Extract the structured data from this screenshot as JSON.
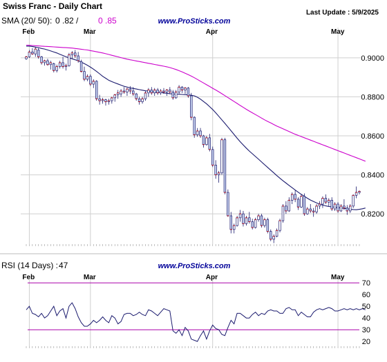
{
  "header": {
    "title": "Swiss Franc - Daily Chart",
    "last_update": "Last Update : 5/9/2025",
    "sma_label": "SMA (20/ 50):",
    "sma20_value": "0 .82 /",
    "sma50_value": "0 .85"
  },
  "watermark": "www.ProSticks.com",
  "rsi_panel": {
    "label": "RSI (14 Days) :",
    "value": "47"
  },
  "colors": {
    "sma20": "#1a1a6e",
    "sma50": "#cc00cc",
    "candle": "#1a1a6e",
    "candle_fill": "#c8d4f0",
    "rsi_line": "#1a1a6e",
    "rsi_levels": "#aa00aa",
    "watermark": "#000099",
    "grid": "#cfcfcf"
  },
  "chart_data": [
    {
      "type": "candlestick",
      "title": "Swiss Franc - Daily Chart",
      "months": [
        "Feb",
        "Mar",
        "Apr",
        "May"
      ],
      "month_start_index": [
        1,
        21,
        61,
        102
      ],
      "yticks": [
        "0.9000",
        "0.8800",
        "0.8600",
        "0.8400",
        "0.8200"
      ],
      "ylim": [
        0.8045,
        0.9155
      ],
      "grid": true,
      "candles": [
        [
          0.8995,
          0.901,
          0.899,
          0.9005
        ],
        [
          0.9005,
          0.904,
          0.9,
          0.903
        ],
        [
          0.903,
          0.905,
          0.9015,
          0.902
        ],
        [
          0.902,
          0.9055,
          0.9005,
          0.9045
        ],
        [
          0.904,
          0.905,
          0.8995,
          0.9005
        ],
        [
          0.9005,
          0.901,
          0.8965,
          0.8975
        ],
        [
          0.8975,
          0.899,
          0.896,
          0.8985
        ],
        [
          0.8985,
          0.8995,
          0.896,
          0.8965
        ],
        [
          0.8965,
          0.8985,
          0.894,
          0.8975
        ],
        [
          0.897,
          0.8975,
          0.8925,
          0.8935
        ],
        [
          0.8935,
          0.8965,
          0.8925,
          0.8955
        ],
        [
          0.8955,
          0.8985,
          0.8945,
          0.8975
        ],
        [
          0.8975,
          0.9005,
          0.8945,
          0.8955
        ],
        [
          0.8955,
          0.897,
          0.8935,
          0.896
        ],
        [
          0.896,
          0.9025,
          0.8955,
          0.9015
        ],
        [
          0.9015,
          0.9035,
          0.8995,
          0.9025
        ],
        [
          0.9025,
          0.904,
          0.9,
          0.901
        ],
        [
          0.901,
          0.903,
          0.8975,
          0.8985
        ],
        [
          0.898,
          0.899,
          0.8925,
          0.893
        ],
        [
          0.893,
          0.8955,
          0.888,
          0.889
        ],
        [
          0.889,
          0.8915,
          0.888,
          0.8905
        ],
        [
          0.8905,
          0.8915,
          0.8855,
          0.8865
        ],
        [
          0.8865,
          0.889,
          0.8845,
          0.888
        ],
        [
          0.888,
          0.8885,
          0.878,
          0.879
        ],
        [
          0.879,
          0.881,
          0.876,
          0.878
        ],
        [
          0.878,
          0.8795,
          0.8765,
          0.8785
        ],
        [
          0.8785,
          0.879,
          0.8755,
          0.8775
        ],
        [
          0.8775,
          0.879,
          0.876,
          0.878
        ],
        [
          0.878,
          0.88,
          0.8765,
          0.8795
        ],
        [
          0.8795,
          0.8815,
          0.8775,
          0.881
        ],
        [
          0.881,
          0.8835,
          0.879,
          0.882
        ],
        [
          0.8815,
          0.884,
          0.88,
          0.883
        ],
        [
          0.883,
          0.885,
          0.8815,
          0.8825
        ],
        [
          0.8825,
          0.8845,
          0.8805,
          0.884
        ],
        [
          0.884,
          0.8855,
          0.8815,
          0.883
        ],
        [
          0.883,
          0.885,
          0.8805,
          0.8815
        ],
        [
          0.8815,
          0.882,
          0.878,
          0.879
        ],
        [
          0.879,
          0.88,
          0.876,
          0.8775
        ],
        [
          0.8775,
          0.88,
          0.8765,
          0.879
        ],
        [
          0.879,
          0.883,
          0.878,
          0.882
        ],
        [
          0.882,
          0.8845,
          0.88,
          0.8835
        ],
        [
          0.8835,
          0.885,
          0.881,
          0.882
        ],
        [
          0.882,
          0.8845,
          0.8805,
          0.8835
        ],
        [
          0.8835,
          0.8845,
          0.881,
          0.882
        ],
        [
          0.882,
          0.884,
          0.881,
          0.883
        ],
        [
          0.883,
          0.8845,
          0.8815,
          0.8825
        ],
        [
          0.8825,
          0.884,
          0.8805,
          0.8835
        ],
        [
          0.8835,
          0.885,
          0.8815,
          0.8825
        ],
        [
          0.8825,
          0.8835,
          0.8785,
          0.8795
        ],
        [
          0.8795,
          0.8835,
          0.879,
          0.8825
        ],
        [
          0.8825,
          0.886,
          0.8815,
          0.885
        ],
        [
          0.885,
          0.8855,
          0.882,
          0.8835
        ],
        [
          0.8835,
          0.885,
          0.8815,
          0.8845
        ],
        [
          0.8845,
          0.885,
          0.8795,
          0.8805
        ],
        [
          0.8805,
          0.882,
          0.868,
          0.8695
        ],
        [
          0.8695,
          0.87,
          0.859,
          0.8605
        ],
        [
          0.8605,
          0.864,
          0.8595,
          0.8625
        ],
        [
          0.8625,
          0.864,
          0.859,
          0.86
        ],
        [
          0.86,
          0.8605,
          0.854,
          0.8555
        ],
        [
          0.8555,
          0.86,
          0.855,
          0.859
        ],
        [
          0.859,
          0.861,
          0.852,
          0.853
        ],
        [
          0.853,
          0.8545,
          0.844,
          0.845
        ],
        [
          0.845,
          0.8475,
          0.838,
          0.84
        ],
        [
          0.84,
          0.842,
          0.836,
          0.841
        ],
        [
          0.841,
          0.859,
          0.84,
          0.858
        ],
        [
          0.858,
          0.859,
          0.83,
          0.831
        ],
        [
          0.831,
          0.8325,
          0.8185,
          0.819
        ],
        [
          0.819,
          0.821,
          0.81,
          0.812
        ],
        [
          0.812,
          0.815,
          0.81,
          0.814
        ],
        [
          0.814,
          0.819,
          0.8135,
          0.818
        ],
        [
          0.818,
          0.822,
          0.816,
          0.82
        ],
        [
          0.82,
          0.8215,
          0.8135,
          0.815
        ],
        [
          0.815,
          0.819,
          0.814,
          0.818
        ],
        [
          0.818,
          0.821,
          0.815,
          0.816
        ],
        [
          0.816,
          0.8175,
          0.812,
          0.813
        ],
        [
          0.813,
          0.818,
          0.8125,
          0.817
        ],
        [
          0.817,
          0.82,
          0.816,
          0.819
        ],
        [
          0.819,
          0.82,
          0.813,
          0.814
        ],
        [
          0.814,
          0.818,
          0.813,
          0.817
        ],
        [
          0.817,
          0.818,
          0.81,
          0.811
        ],
        [
          0.811,
          0.812,
          0.806,
          0.807
        ],
        [
          0.807,
          0.8095,
          0.805,
          0.8085
        ],
        [
          0.8085,
          0.8125,
          0.808,
          0.8115
        ],
        [
          0.8115,
          0.8175,
          0.8105,
          0.8165
        ],
        [
          0.8165,
          0.825,
          0.8155,
          0.824
        ],
        [
          0.824,
          0.8265,
          0.82,
          0.8215
        ],
        [
          0.8215,
          0.8285,
          0.821,
          0.827
        ],
        [
          0.827,
          0.831,
          0.825,
          0.83
        ],
        [
          0.83,
          0.832,
          0.826,
          0.8275
        ],
        [
          0.8275,
          0.8285,
          0.822,
          0.8235
        ],
        [
          0.8235,
          0.83,
          0.823,
          0.829
        ],
        [
          0.829,
          0.8305,
          0.819,
          0.82
        ],
        [
          0.82,
          0.8235,
          0.8195,
          0.8225
        ],
        [
          0.8225,
          0.825,
          0.8205,
          0.8215
        ],
        [
          0.8215,
          0.823,
          0.8185,
          0.821
        ],
        [
          0.821,
          0.825,
          0.82,
          0.824
        ],
        [
          0.824,
          0.8265,
          0.8225,
          0.825
        ],
        [
          0.825,
          0.829,
          0.823,
          0.828
        ],
        [
          0.828,
          0.83,
          0.825,
          0.826
        ],
        [
          0.826,
          0.828,
          0.824,
          0.827
        ],
        [
          0.827,
          0.8285,
          0.8215,
          0.8225
        ],
        [
          0.8225,
          0.826,
          0.8215,
          0.825
        ],
        [
          0.825,
          0.826,
          0.8205,
          0.8215
        ],
        [
          0.8215,
          0.825,
          0.821,
          0.824
        ],
        [
          0.824,
          0.8275,
          0.822,
          0.823
        ],
        [
          0.823,
          0.8245,
          0.8195,
          0.8215
        ],
        [
          0.8215,
          0.825,
          0.8205,
          0.824
        ],
        [
          0.824,
          0.83,
          0.823,
          0.8295
        ],
        [
          0.8295,
          0.834,
          0.828,
          0.831
        ],
        [
          0.831,
          0.832,
          0.83,
          0.8315
        ]
      ],
      "sma20": [
        0.906,
        0.906,
        0.9058,
        0.9055,
        0.9052,
        0.9048,
        0.9045,
        0.904,
        0.9035,
        0.903,
        0.9025,
        0.9018,
        0.9012,
        0.9005,
        0.9,
        0.8995,
        0.899,
        0.8985,
        0.8978,
        0.897,
        0.8962,
        0.8952,
        0.8942,
        0.893,
        0.8918,
        0.8905,
        0.8895,
        0.8885,
        0.8878,
        0.8872,
        0.8866,
        0.886,
        0.8854,
        0.885,
        0.8846,
        0.8843,
        0.884,
        0.8837,
        0.8834,
        0.8831,
        0.8829,
        0.8827,
        0.8825,
        0.8823,
        0.8822,
        0.882,
        0.8818,
        0.8816,
        0.8815,
        0.8814,
        0.8813,
        0.8812,
        0.8811,
        0.881,
        0.8808,
        0.8805,
        0.8798,
        0.8788,
        0.8776,
        0.8764,
        0.875,
        0.8735,
        0.8718,
        0.87,
        0.8682,
        0.8664,
        0.8645,
        0.8626,
        0.8607,
        0.8588,
        0.857,
        0.8553,
        0.8537,
        0.8522,
        0.8508,
        0.8494,
        0.848,
        0.8466,
        0.8452,
        0.8438,
        0.8424,
        0.841,
        0.8396,
        0.8383,
        0.837,
        0.8358,
        0.8346,
        0.8334,
        0.8322,
        0.8311,
        0.83,
        0.829,
        0.828,
        0.8271,
        0.8263,
        0.8256,
        0.825,
        0.8245,
        0.8241,
        0.8238,
        0.8236,
        0.8234,
        0.8232,
        0.823,
        0.8228,
        0.8226,
        0.8224,
        0.8222,
        0.8221,
        0.8223,
        0.8226,
        0.823
      ],
      "sma50": [
        0.9065,
        0.9064,
        0.9063,
        0.9062,
        0.9061,
        0.906,
        0.9059,
        0.9058,
        0.9057,
        0.9056,
        0.9055,
        0.9054,
        0.9053,
        0.9052,
        0.9051,
        0.905,
        0.9048,
        0.9046,
        0.9044,
        0.9042,
        0.904,
        0.9037,
        0.9034,
        0.9031,
        0.9028,
        0.9025,
        0.9021,
        0.9017,
        0.9013,
        0.9009,
        0.9005,
        0.9001,
        0.8997,
        0.8993,
        0.899,
        0.8987,
        0.8984,
        0.8981,
        0.8978,
        0.8975,
        0.8972,
        0.8969,
        0.8966,
        0.8963,
        0.896,
        0.8957,
        0.8954,
        0.895,
        0.8945,
        0.894,
        0.8934,
        0.8928,
        0.8921,
        0.8914,
        0.8906,
        0.8898,
        0.8889,
        0.888,
        0.8871,
        0.8862,
        0.8853,
        0.8844,
        0.8835,
        0.8826,
        0.8816,
        0.8806,
        0.8796,
        0.8786,
        0.8776,
        0.8766,
        0.8756,
        0.8746,
        0.8736,
        0.8727,
        0.8718,
        0.8709,
        0.87,
        0.8691,
        0.8682,
        0.8674,
        0.8666,
        0.8658,
        0.865,
        0.8643,
        0.8636,
        0.8629,
        0.8622,
        0.8615,
        0.8608,
        0.8602,
        0.8596,
        0.859,
        0.8584,
        0.8578,
        0.8572,
        0.8566,
        0.856,
        0.8554,
        0.8548,
        0.8542,
        0.8536,
        0.853,
        0.8524,
        0.8518,
        0.8512,
        0.8506,
        0.85,
        0.8494,
        0.8488,
        0.8482,
        0.8476,
        0.847
      ]
    },
    {
      "type": "line",
      "title": "RSI (14 Days)",
      "months": [
        "Feb",
        "Mar",
        "Apr",
        "May"
      ],
      "yticks": [
        70,
        60,
        50,
        40,
        30,
        20
      ],
      "ylim": [
        16,
        76
      ],
      "levels": [
        70,
        30
      ],
      "rsi": [
        47,
        50,
        44,
        43,
        41,
        44,
        40,
        42,
        46,
        50,
        42,
        46,
        48,
        40,
        50,
        53,
        48,
        41,
        36,
        33,
        33,
        35,
        38,
        36,
        38,
        41,
        38,
        36,
        42,
        40,
        35,
        37,
        43,
        44,
        44,
        42,
        43,
        45,
        43,
        42,
        47,
        46,
        44,
        42,
        45,
        48,
        47,
        46,
        29,
        27,
        30,
        25,
        32,
        29,
        22,
        21,
        20,
        25,
        29,
        22,
        29,
        34,
        31,
        30,
        26,
        25,
        32,
        38,
        35,
        44,
        44,
        42,
        40,
        40,
        43,
        45,
        42,
        44,
        43,
        46,
        47,
        46,
        46,
        44,
        44,
        48,
        49,
        47,
        47,
        42,
        45,
        43,
        41,
        41,
        45,
        47,
        48,
        47,
        48,
        49,
        48,
        46,
        46,
        47,
        48,
        47,
        48,
        47,
        48,
        47,
        48,
        47
      ]
    }
  ]
}
